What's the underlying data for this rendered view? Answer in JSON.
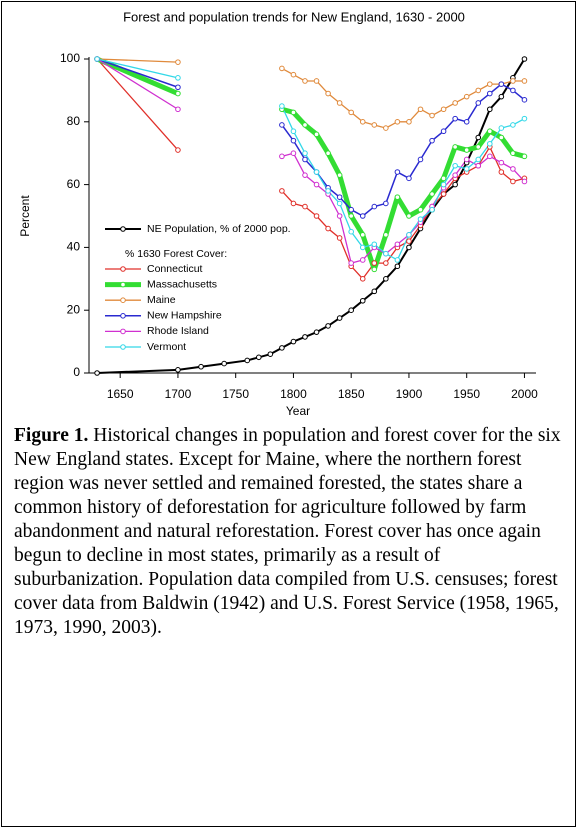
{
  "chart_data": {
    "type": "line",
    "title": "Forest and population trends for New England, 1630 - 2000",
    "xlabel": "Year",
    "ylabel": "Percent",
    "legend_title": "% 1630 Forest Cover:",
    "x": [
      1630,
      1700,
      1720,
      1740,
      1760,
      1770,
      1780,
      1790,
      1800,
      1810,
      1820,
      1830,
      1840,
      1850,
      1860,
      1870,
      1880,
      1890,
      1900,
      1910,
      1920,
      1930,
      1940,
      1950,
      1960,
      1970,
      1980,
      1990,
      2000
    ],
    "xlim": [
      1623,
      2010
    ],
    "xticks": [
      1650,
      1700,
      1750,
      1800,
      1850,
      1900,
      1950,
      2000
    ],
    "ylim": [
      0,
      100
    ],
    "yticks": [
      0,
      20,
      40,
      60,
      80,
      100
    ],
    "series": [
      {
        "name": "NE Population, % of 2000 pop.",
        "color": "#000000",
        "line_width": 2,
        "values": [
          0,
          1,
          2,
          3,
          4,
          5,
          6,
          8,
          10,
          11.5,
          13,
          15,
          17.5,
          20,
          23,
          26,
          30,
          34,
          40,
          46,
          52,
          57,
          60,
          67,
          75,
          84,
          88,
          94,
          100
        ]
      },
      {
        "name": "Connecticut",
        "color": "#e0302a",
        "line_width": 1.3,
        "values": [
          100,
          71,
          null,
          null,
          null,
          null,
          null,
          58,
          54,
          53,
          50,
          46,
          43,
          34,
          30,
          35,
          35,
          40,
          42,
          47,
          53,
          57,
          62,
          64,
          66,
          72,
          64,
          61,
          62
        ]
      },
      {
        "name": "Massachusetts",
        "color": "#33dd33",
        "line_width": 5,
        "values": [
          100,
          89,
          null,
          null,
          null,
          null,
          null,
          84,
          83,
          79,
          76,
          70,
          63,
          50,
          44,
          33,
          44,
          56,
          50,
          52,
          57,
          62,
          72,
          71,
          72,
          77,
          75,
          70,
          69
        ]
      },
      {
        "name": "Maine",
        "color": "#e08a3c",
        "line_width": 1.3,
        "values": [
          100,
          99,
          null,
          null,
          null,
          null,
          null,
          97,
          95,
          93,
          93,
          89,
          86,
          83,
          80,
          79,
          78,
          80,
          80,
          84,
          82,
          84,
          86,
          88,
          90,
          92,
          92,
          93,
          93
        ]
      },
      {
        "name": "New Hampshire",
        "color": "#2a2ad0",
        "line_width": 1.5,
        "values": [
          100,
          91,
          null,
          null,
          null,
          null,
          null,
          79,
          74,
          68,
          64,
          59,
          56,
          52,
          50,
          53,
          54,
          64,
          62,
          68,
          74,
          77,
          81,
          80,
          86,
          89,
          92,
          90,
          87
        ]
      },
      {
        "name": "Rhode Island",
        "color": "#d030d0",
        "line_width": 1.3,
        "values": [
          100,
          84,
          null,
          null,
          null,
          null,
          null,
          69,
          70,
          63,
          60,
          57,
          50,
          35,
          36,
          40,
          38,
          41,
          44,
          48,
          53,
          59,
          63,
          68,
          66,
          69,
          67,
          65,
          61
        ]
      },
      {
        "name": "Vermont",
        "color": "#33d8e8",
        "line_width": 1.3,
        "values": [
          100,
          94,
          null,
          null,
          null,
          null,
          null,
          85,
          77,
          70,
          64,
          58,
          54,
          45,
          40,
          41,
          38,
          36,
          44,
          49,
          52,
          60,
          66,
          65,
          68,
          73,
          78,
          79,
          81
        ]
      }
    ]
  },
  "caption": {
    "label": "Figure 1.",
    "text": "Historical changes in population and forest cover for the six New England states. Except for Maine, where the northern forest region was never settled and remained forested, the states share a common history of deforestation for agriculture followed by farm abandonment and natural reforestation. Forest cover has once again begun to decline in most states, primarily as a result of suburbanization. Population data compiled from U.S. censuses; forest cover data from Baldwin (1942) and U.S. Forest Service (1958, 1965, 1973, 1990, 2003)."
  }
}
